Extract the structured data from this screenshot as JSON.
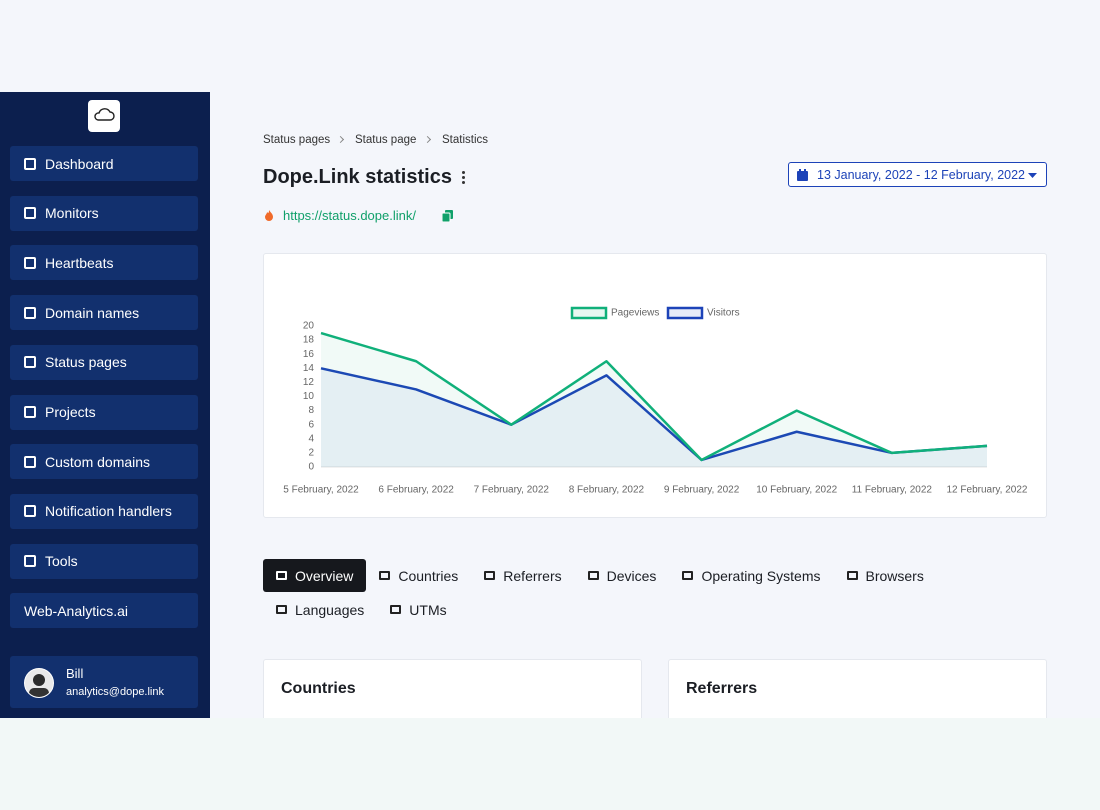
{
  "sidebar": {
    "items": [
      "Dashboard",
      "Monitors",
      "Heartbeats",
      "Domain names",
      "Status pages",
      "Projects",
      "Custom domains",
      "Notification handlers",
      "Tools",
      "Web-Analytics.ai"
    ],
    "user": {
      "name": "Bill",
      "email": "analytics@dope.link"
    }
  },
  "breadcrumb": [
    "Status pages",
    "Status page",
    "Statistics"
  ],
  "header": {
    "title": "Dope.Link statistics",
    "url": "https://status.dope.link/",
    "date_range": "13 January, 2022 - 12 February, 2022"
  },
  "chart_data": {
    "type": "line",
    "categories": [
      "5 February, 2022",
      "6 February, 2022",
      "7 February, 2022",
      "8 February, 2022",
      "9 February, 2022",
      "10 February, 2022",
      "11 February, 2022",
      "12 February, 2022"
    ],
    "series": [
      {
        "name": "Pageviews",
        "color": "#10b07a",
        "values": [
          19,
          15,
          6,
          15,
          1,
          8,
          2,
          3
        ]
      },
      {
        "name": "Visitors",
        "color": "#1d43b8",
        "values": [
          14,
          11,
          6,
          13,
          1,
          5,
          2,
          3
        ]
      }
    ],
    "ylim": [
      0,
      20
    ],
    "yticks": [
      0,
      2,
      4,
      6,
      8,
      10,
      12,
      14,
      16,
      18,
      20
    ],
    "legend": "top"
  },
  "tabs": [
    "Overview",
    "Countries",
    "Referrers",
    "Devices",
    "Operating Systems",
    "Browsers",
    "Languages",
    "UTMs"
  ],
  "cards": [
    "Countries",
    "Referrers"
  ]
}
